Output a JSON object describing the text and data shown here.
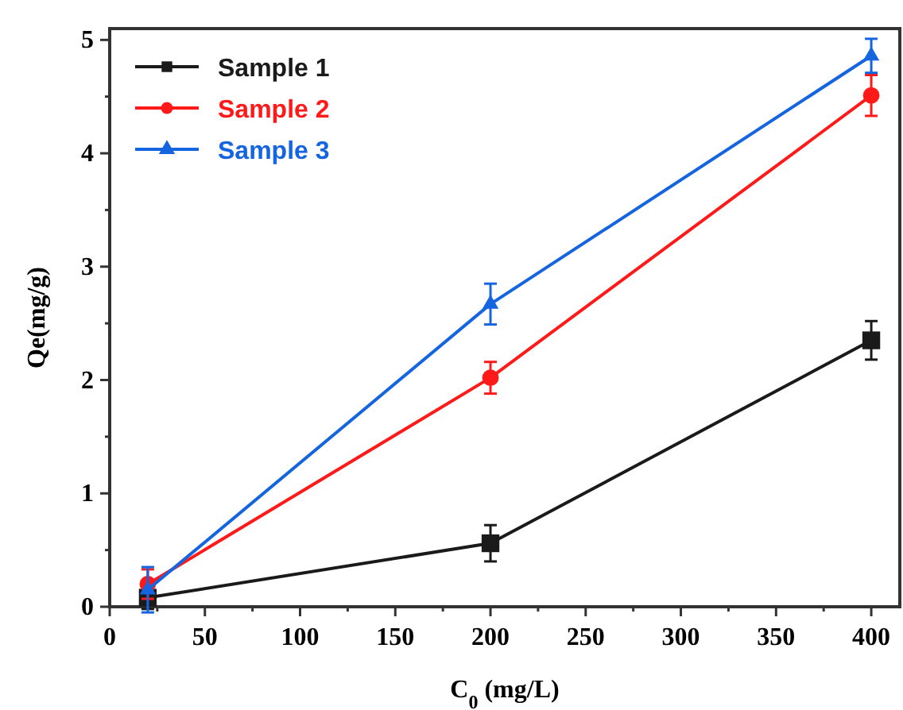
{
  "chart_data": {
    "type": "line",
    "xlabel": "C$_{0}$ (mg/L)",
    "ylabel": "Qe(mg/g)",
    "x": [
      20,
      200,
      400
    ],
    "xlim": [
      0,
      415
    ],
    "ylim": [
      0,
      5.1
    ],
    "xticks": [
      0,
      {
        "value": 25,
        "label": null
      },
      50,
      {
        "value": 75,
        "label": null
      },
      100,
      {
        "value": 125,
        "label": null
      },
      150,
      {
        "value": 175,
        "label": null
      },
      200,
      {
        "value": 225,
        "label": null
      },
      250,
      {
        "value": 275,
        "label": null
      },
      300,
      {
        "value": 325,
        "label": null
      },
      350,
      {
        "value": 375,
        "label": null
      },
      400
    ],
    "yticks": [
      0,
      {
        "value": 0.5,
        "label": null
      },
      1,
      {
        "value": 1.5,
        "label": null
      },
      2,
      {
        "value": 2.5,
        "label": null
      },
      3,
      {
        "value": 3.5,
        "label": null
      },
      4,
      {
        "value": 4.5,
        "label": null
      },
      5
    ],
    "legend": "top left",
    "grid": false,
    "line_style": "solid",
    "series": [
      {
        "name": "Sample 1",
        "color": "#1a1a1a",
        "marker": "square",
        "values": [
          0.08,
          0.56,
          2.35
        ],
        "errors": [
          0.1,
          0.16,
          0.17
        ]
      },
      {
        "name": "Sample 2",
        "color": "#ff1a1a",
        "marker": "circle",
        "values": [
          0.2,
          2.02,
          4.51
        ],
        "errors": [
          0.13,
          0.14,
          0.18
        ]
      },
      {
        "name": "Sample 3",
        "color": "#1565e0",
        "marker": "triangle",
        "values": [
          0.15,
          2.67,
          4.86
        ],
        "errors": [
          0.2,
          0.18,
          0.15
        ]
      }
    ]
  }
}
